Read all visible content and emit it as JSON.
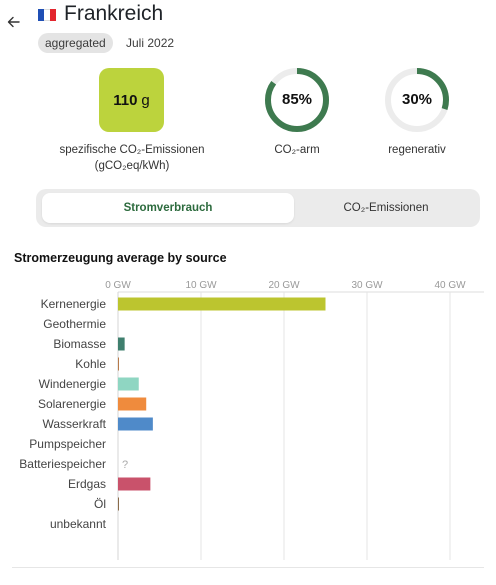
{
  "header": {
    "back_label": "←",
    "country": "Frankreich",
    "badge": "aggregated",
    "date": "Juli 2022",
    "flag_colors": [
      "#1f4fb5",
      "#ffffff",
      "#e3262e"
    ]
  },
  "kpis": {
    "intensity": {
      "value": "110",
      "unit": "g",
      "label_line1": "spezifische CO₂-Emissionen",
      "label_line2": "(gCO₂eq/kWh)",
      "color": "#bcd33d"
    },
    "low_carbon": {
      "value": "85%",
      "fraction": 0.85,
      "label": "CO₂-arm",
      "color": "#3e7a4f"
    },
    "renewable": {
      "value": "30%",
      "fraction": 0.3,
      "label": "regenerativ",
      "color": "#3e7a4f"
    },
    "ring_track_color": "#ececec"
  },
  "toggle": {
    "active_label": "Stromverbrauch",
    "inactive_label": "CO₂-Emissionen"
  },
  "section_title": "Stromerzeugung average by source",
  "chart_data": {
    "type": "bar",
    "orientation": "horizontal",
    "unit": "GW",
    "xlim": [
      0,
      40
    ],
    "ticks": [
      "0 GW",
      "10 GW",
      "20 GW",
      "30 GW",
      "40 GW"
    ],
    "tick_values": [
      0,
      10,
      20,
      30,
      40
    ],
    "categories": [
      "Kernenergie",
      "Geothermie",
      "Biomasse",
      "Kohle",
      "Windenergie",
      "Solarenergie",
      "Wasserkraft",
      "Pumpspeicher",
      "Batteriespeicher",
      "Erdgas",
      "Öl",
      "unbekannt"
    ],
    "values": [
      25,
      0,
      0.8,
      0.05,
      2.5,
      3.4,
      4.2,
      0,
      null,
      3.9,
      0.1,
      0
    ],
    "colors": [
      "#bcc52f",
      "#888888",
      "#3f7f6e",
      "#b77a4a",
      "#8fd6c2",
      "#ef8b3d",
      "#4f8ac9",
      "#6e5aa8",
      "#999999",
      "#c9526b",
      "#8a6b4a",
      "#999999"
    ],
    "missing_marker": "?",
    "grid": true
  },
  "colors": {
    "accent_green": "#2d6b3e",
    "toggle_bg": "#ebebeb"
  }
}
